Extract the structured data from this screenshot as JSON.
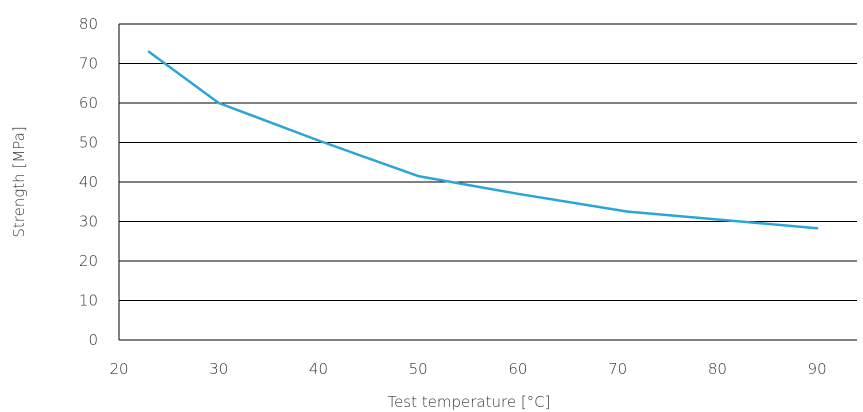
{
  "chart_data": {
    "type": "line",
    "title": "",
    "xlabel": "Test temperature [°C]",
    "ylabel": "Strength [MPa]",
    "xlim": [
      20,
      94
    ],
    "ylim": [
      0,
      80
    ],
    "xticks": [
      20,
      30,
      40,
      50,
      60,
      70,
      80,
      90
    ],
    "yticks": [
      0,
      10,
      20,
      30,
      40,
      50,
      60,
      70,
      80
    ],
    "grid": "horizontal",
    "legend": "none",
    "colors": {
      "line": "#2aa5d6",
      "grid": "#000000",
      "text": "#333333"
    },
    "series": [
      {
        "x": [
          23,
          30,
          40,
          50,
          60,
          71,
          80,
          90
        ],
        "y": [
          73,
          60,
          50.5,
          41.5,
          37,
          32.5,
          30.5,
          28.3
        ]
      }
    ]
  }
}
